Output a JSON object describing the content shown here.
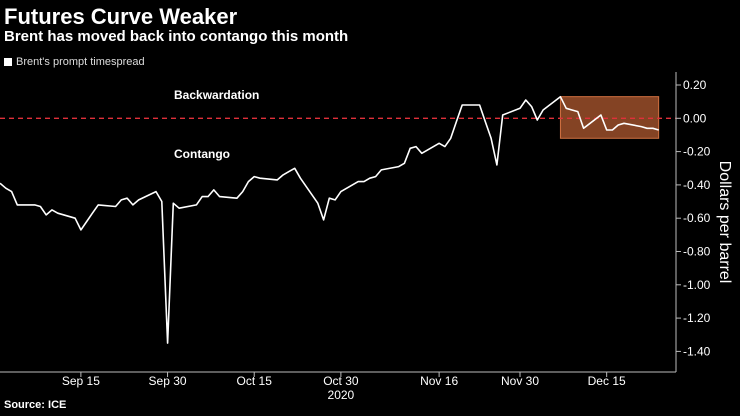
{
  "header": {
    "title": "Futures Curve Weaker",
    "subtitle": "Brent has moved back into contango this month"
  },
  "legend": {
    "label": "Brent's prompt timespread",
    "swatch_color": "#ffffff"
  },
  "source": "Source: ICE",
  "annotations": {
    "upper": "Backwardation",
    "lower": "Contango"
  },
  "colors": {
    "background": "#000000",
    "line": "#ffffff",
    "zero_line": "#e0303a",
    "highlight_fill": "#b05a30",
    "highlight_stroke": "#d07040",
    "axis": "#bbbbbb"
  },
  "chart_data": {
    "type": "line",
    "title": "Futures Curve Weaker",
    "subtitle": "Brent has moved back into contango this month",
    "xlabel": "2020",
    "ylabel": "Dollars per barrel",
    "ylim": [
      -1.5,
      0.25
    ],
    "yticks": [
      0.2,
      0.0,
      -0.2,
      -0.4,
      -0.6,
      -0.8,
      -1.0,
      -1.2,
      -1.4
    ],
    "ytick_labels": [
      "0.20",
      "0.00",
      "-0.20",
      "-0.40",
      "-0.60",
      "-0.80",
      "-1.00",
      "-1.20",
      "-1.40"
    ],
    "xtick_labels": [
      "Sep 15",
      "Sep 30",
      "Oct 15",
      "Oct 30",
      "Nov 16",
      "Nov 30",
      "Dec 15"
    ],
    "xtick_dates": [
      "2020-09-15",
      "2020-09-30",
      "2020-10-15",
      "2020-10-30",
      "2020-11-16",
      "2020-11-30",
      "2020-12-15"
    ],
    "x_range": [
      "2020-09-01",
      "2020-12-27"
    ],
    "reference_line": {
      "y": 0.0,
      "style": "dashed",
      "color": "#e0303a"
    },
    "highlight": {
      "x_start": "2020-12-07",
      "x_end": "2020-12-24",
      "y_start": -0.12,
      "y_end": 0.13
    },
    "grid": false,
    "legend_position": "top-left",
    "series": [
      {
        "name": "Brent's prompt timespread",
        "x": [
          "2020-09-01",
          "2020-09-02",
          "2020-09-03",
          "2020-09-04",
          "2020-09-07",
          "2020-09-08",
          "2020-09-09",
          "2020-09-10",
          "2020-09-11",
          "2020-09-14",
          "2020-09-15",
          "2020-09-16",
          "2020-09-17",
          "2020-09-18",
          "2020-09-21",
          "2020-09-22",
          "2020-09-23",
          "2020-09-24",
          "2020-09-25",
          "2020-09-28",
          "2020-09-29",
          "2020-09-30",
          "2020-10-01",
          "2020-10-02",
          "2020-10-05",
          "2020-10-06",
          "2020-10-07",
          "2020-10-08",
          "2020-10-09",
          "2020-10-12",
          "2020-10-13",
          "2020-10-14",
          "2020-10-15",
          "2020-10-16",
          "2020-10-19",
          "2020-10-20",
          "2020-10-21",
          "2020-10-22",
          "2020-10-23",
          "2020-10-26",
          "2020-10-27",
          "2020-10-28",
          "2020-10-29",
          "2020-10-30",
          "2020-11-02",
          "2020-11-03",
          "2020-11-04",
          "2020-11-05",
          "2020-11-06",
          "2020-11-09",
          "2020-11-10",
          "2020-11-11",
          "2020-11-12",
          "2020-11-13",
          "2020-11-16",
          "2020-11-17",
          "2020-11-18",
          "2020-11-19",
          "2020-11-20",
          "2020-11-23",
          "2020-11-24",
          "2020-11-25",
          "2020-11-26",
          "2020-11-27",
          "2020-11-30",
          "2020-12-01",
          "2020-12-02",
          "2020-12-03",
          "2020-12-04",
          "2020-12-07",
          "2020-12-08",
          "2020-12-09",
          "2020-12-10",
          "2020-12-11",
          "2020-12-14",
          "2020-12-15",
          "2020-12-16",
          "2020-12-17",
          "2020-12-18",
          "2020-12-21",
          "2020-12-22",
          "2020-12-23",
          "2020-12-24"
        ],
        "values": [
          -0.39,
          -0.42,
          -0.44,
          -0.52,
          -0.52,
          -0.53,
          -0.58,
          -0.55,
          -0.57,
          -0.6,
          -0.67,
          -0.62,
          -0.57,
          -0.52,
          -0.53,
          -0.49,
          -0.48,
          -0.52,
          -0.49,
          -0.44,
          -0.5,
          -1.35,
          -0.51,
          -0.54,
          -0.52,
          -0.47,
          -0.47,
          -0.43,
          -0.47,
          -0.48,
          -0.44,
          -0.38,
          -0.35,
          -0.36,
          -0.37,
          -0.34,
          -0.32,
          -0.3,
          -0.36,
          -0.51,
          -0.61,
          -0.48,
          -0.49,
          -0.44,
          -0.38,
          -0.38,
          -0.36,
          -0.35,
          -0.31,
          -0.29,
          -0.27,
          -0.18,
          -0.17,
          -0.21,
          -0.15,
          -0.17,
          -0.12,
          -0.02,
          0.08,
          0.08,
          -0.02,
          -0.12,
          -0.28,
          0.02,
          0.06,
          0.11,
          0.07,
          -0.01,
          0.05,
          0.13,
          0.06,
          0.05,
          0.04,
          -0.06,
          0.02,
          -0.07,
          -0.07,
          -0.04,
          -0.03,
          -0.05,
          -0.06,
          -0.06,
          -0.07
        ]
      }
    ]
  }
}
